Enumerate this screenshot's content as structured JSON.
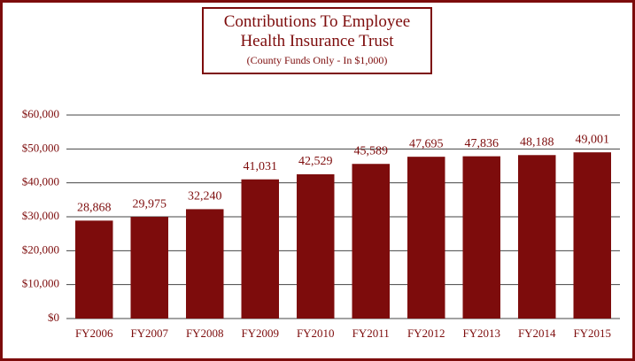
{
  "chart_data": {
    "type": "bar",
    "title": "Contributions To Employee Health Insurance Trust",
    "subtitle": "(County Funds Only - In $1,000)",
    "categories": [
      "FY2006",
      "FY2007",
      "FY2008",
      "FY2009",
      "FY2010",
      "FY2011",
      "FY2012",
      "FY2013",
      "FY2014",
      "FY2015"
    ],
    "values": [
      28868,
      29975,
      32240,
      41031,
      42529,
      45589,
      47695,
      47836,
      48188,
      49001
    ],
    "value_labels": [
      "28,868",
      "29,975",
      "32,240",
      "41,031",
      "42,529",
      "45,589",
      "47,695",
      "47,836",
      "48,188",
      "49,001"
    ],
    "color": "#7d0c0c",
    "ylim": [
      0,
      60000
    ],
    "yticks": [
      {
        "value": 0,
        "label": "$0"
      },
      {
        "value": 10000,
        "label": "$10,000"
      },
      {
        "value": 20000,
        "label": "$20,000"
      },
      {
        "value": 30000,
        "label": "$30,000"
      },
      {
        "value": 40000,
        "label": "$40,000"
      },
      {
        "value": 50000,
        "label": "$50,000"
      },
      {
        "value": 60000,
        "label": "$60,000"
      }
    ],
    "grid": true
  }
}
